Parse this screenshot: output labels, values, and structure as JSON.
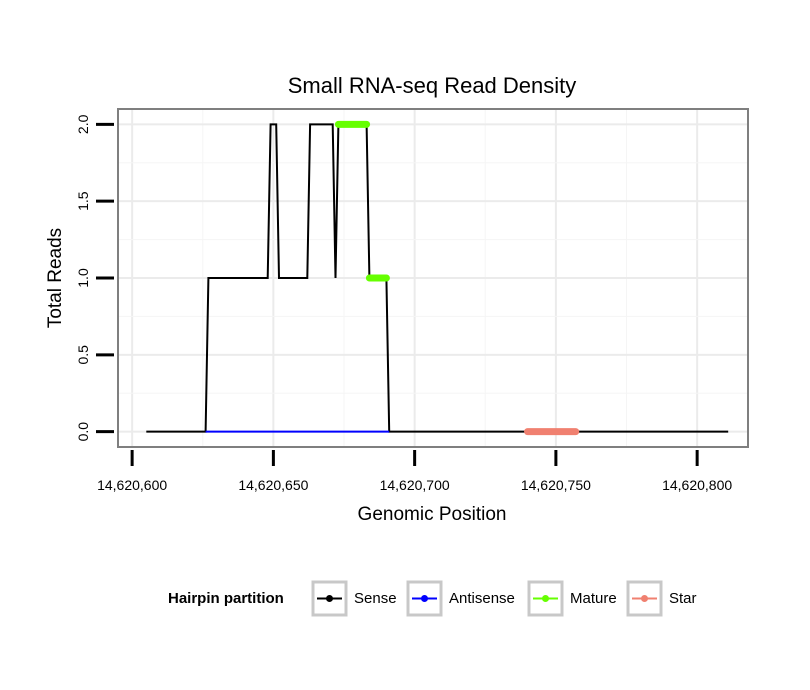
{
  "chart_data": {
    "type": "line",
    "title": "Small RNA-seq Read Density",
    "xlabel": "Genomic Position",
    "ylabel": "Total Reads",
    "xlim": [
      14620595,
      14620818
    ],
    "ylim": [
      -0.1,
      2.1
    ],
    "x_ticks": [
      {
        "value": 14620600,
        "label": "14,620,600"
      },
      {
        "value": 14620650,
        "label": "14,620,650"
      },
      {
        "value": 14620700,
        "label": "14,620,700"
      },
      {
        "value": 14620750,
        "label": "14,620,750"
      },
      {
        "value": 14620800,
        "label": "14,620,800"
      }
    ],
    "y_ticks": [
      {
        "value": 0.0,
        "label": "0.0"
      },
      {
        "value": 0.5,
        "label": "0.5"
      },
      {
        "value": 1.0,
        "label": "1.0"
      },
      {
        "value": 1.5,
        "label": "1.5"
      },
      {
        "value": 2.0,
        "label": "2.0"
      }
    ],
    "grid": true,
    "series": [
      {
        "name": "Sense",
        "color": "#000000",
        "width": 2,
        "x": [
          14620605,
          14620626,
          14620627,
          14620648,
          14620649,
          14620651,
          14620652,
          14620662,
          14620663,
          14620671,
          14620672,
          14620673,
          14620683,
          14620684,
          14620690,
          14620691,
          14620811
        ],
        "y": [
          0,
          0,
          1,
          1,
          2,
          2,
          1,
          1,
          2,
          2,
          1,
          2,
          2,
          1,
          1,
          0,
          0
        ]
      },
      {
        "name": "Antisense",
        "color": "#0000ff",
        "width": 2,
        "x": [
          14620626,
          14620691
        ],
        "y": [
          0,
          0
        ]
      },
      {
        "name": "Mature",
        "color": "#66ff00",
        "width": 7,
        "x": [
          14620673,
          14620683
        ],
        "y": [
          2,
          2
        ]
      },
      {
        "name": "Mature",
        "color": "#66ff00",
        "width": 7,
        "x": [
          14620684,
          14620690
        ],
        "y": [
          1,
          1
        ]
      },
      {
        "name": "Star",
        "color": "#f08070",
        "width": 7,
        "x": [
          14620740,
          14620757
        ],
        "y": [
          0,
          0
        ]
      }
    ],
    "legend": {
      "title": "Hairpin partition",
      "position": "bottom",
      "entries": [
        {
          "label": "Sense",
          "color": "#000000"
        },
        {
          "label": "Antisense",
          "color": "#0000ff"
        },
        {
          "label": "Mature",
          "color": "#66ff00"
        },
        {
          "label": "Star",
          "color": "#f08070"
        }
      ]
    }
  }
}
